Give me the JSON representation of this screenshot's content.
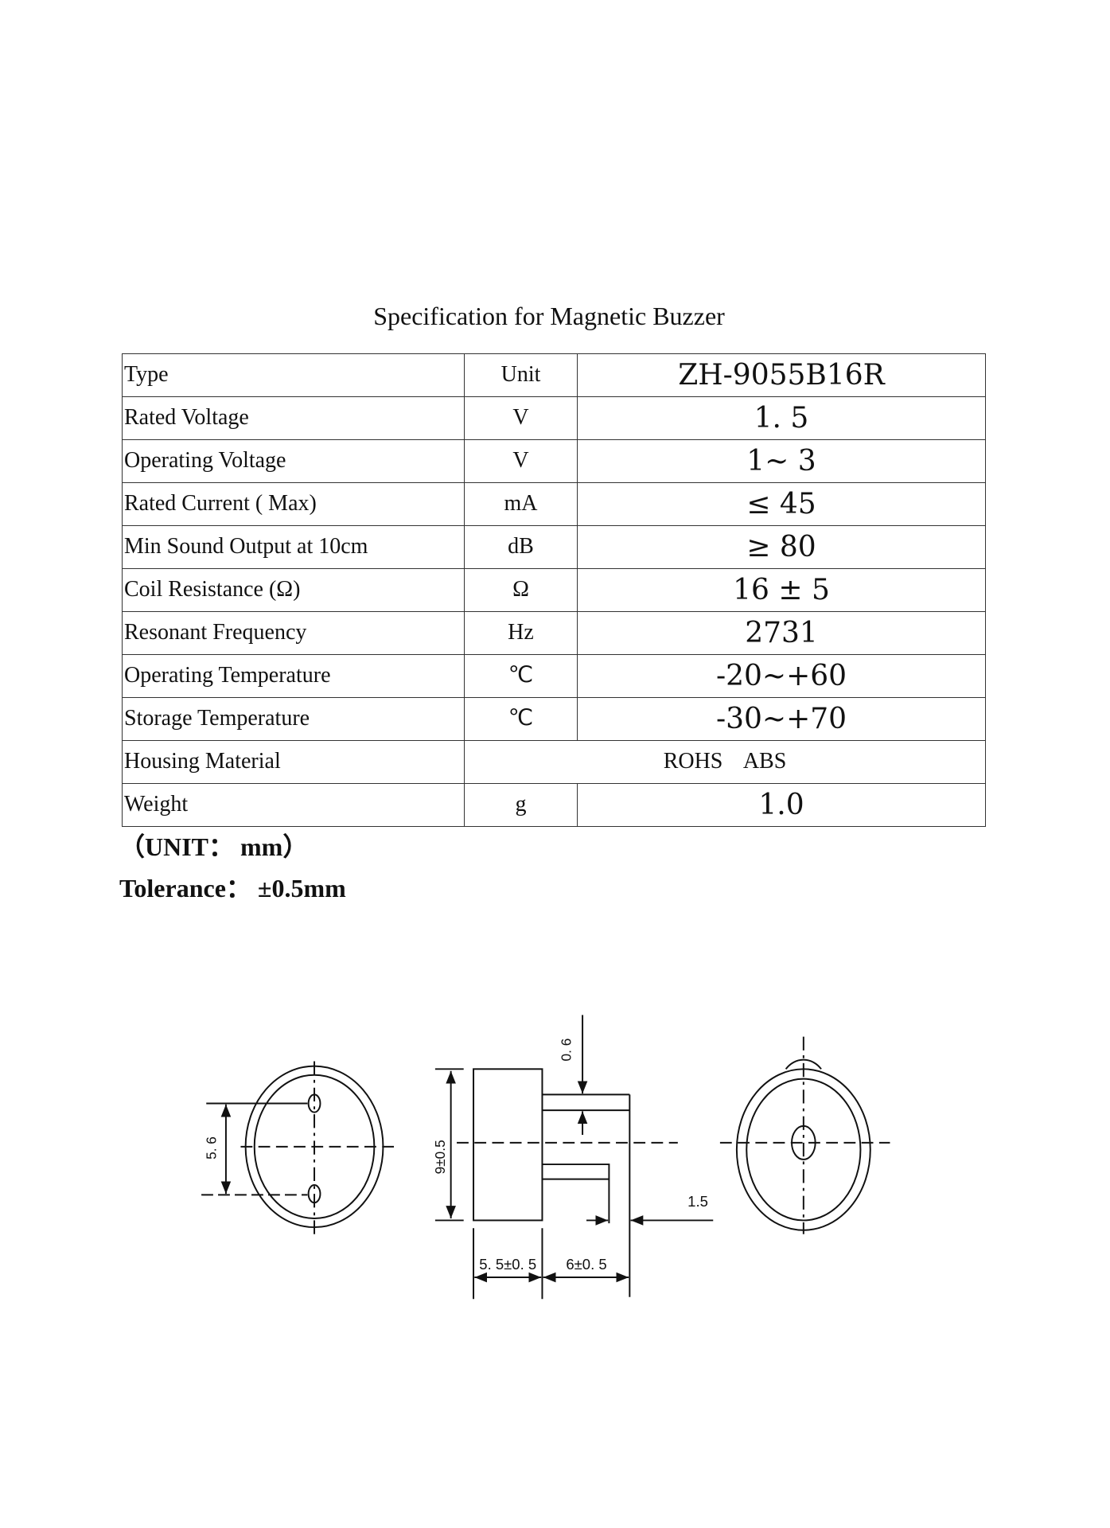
{
  "title": "Specification for Magnetic Buzzer",
  "table": {
    "header": {
      "param": "Type",
      "unit": "Unit",
      "value": "ZH-9055B16R"
    },
    "rows": [
      {
        "param": "Rated Voltage",
        "unit": "V",
        "value": "1. 5"
      },
      {
        "param": "Operating Voltage",
        "unit": "V",
        "value": "1~ 3"
      },
      {
        "param": "Rated Current ( Max)",
        "unit": "mA",
        "value": "≤ 45"
      },
      {
        "param": "Min Sound Output at 10cm",
        "unit": "dB",
        "value": "≥ 80"
      },
      {
        "param": "Coil Resistance (Ω)",
        "unit": "Ω",
        "value": "16 ± 5"
      },
      {
        "param": "Resonant Frequency",
        "unit": "Hz",
        "value": "2731"
      },
      {
        "param": "Operating Temperature",
        "unit": "℃",
        "value": "-20~+60"
      },
      {
        "param": "Storage Temperature",
        "unit": "℃",
        "value": "-30~+70"
      },
      {
        "param": "Housing Material",
        "value": "ROHS ABS"
      },
      {
        "param": "Weight",
        "unit": "g",
        "value": "1.0"
      }
    ]
  },
  "notes": {
    "unit": "（UNIT： mm）",
    "tolerance": "Tolerance： ±0.5mm"
  },
  "drawing": {
    "pin_spacing": "5. 6",
    "height": "9±0.5",
    "pin_thickness": "0. 6",
    "pin_offset": "1.5",
    "body_depth": "5. 5±0. 5",
    "pin_length": "6±0. 5"
  }
}
